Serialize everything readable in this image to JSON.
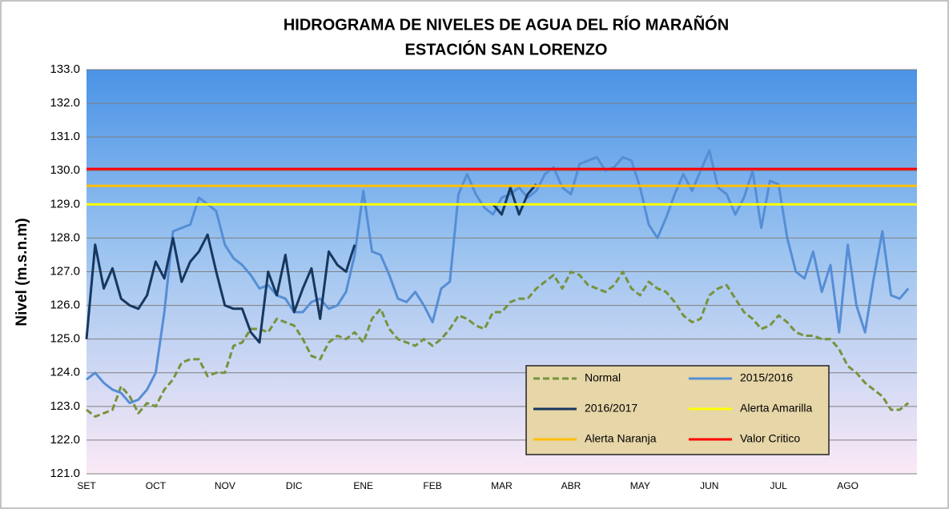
{
  "chart_data": {
    "type": "line",
    "title": [
      "HIDROGRAMA DE NIVELES DE AGUA DEL RÍO MARAÑÓN",
      "ESTACIÓN SAN LORENZO"
    ],
    "y_label": "Nivel (m.s.n.m)",
    "categories": [
      "SET",
      null,
      null,
      null,
      null,
      null,
      null,
      null,
      "OCT",
      null,
      null,
      null,
      null,
      null,
      null,
      null,
      "NOV",
      null,
      null,
      null,
      null,
      null,
      null,
      null,
      "DIC",
      null,
      null,
      null,
      null,
      null,
      null,
      null,
      "ENE",
      null,
      null,
      null,
      null,
      null,
      null,
      null,
      "FEB",
      null,
      null,
      null,
      null,
      null,
      null,
      null,
      "MAR",
      null,
      null,
      null,
      null,
      null,
      null,
      null,
      "ABR",
      null,
      null,
      null,
      null,
      null,
      null,
      null,
      "MAY",
      null,
      null,
      null,
      null,
      null,
      null,
      null,
      "JUN",
      null,
      null,
      null,
      null,
      null,
      null,
      null,
      "JUL",
      null,
      null,
      null,
      null,
      null,
      null,
      null,
      "AGO",
      null,
      null,
      null,
      null,
      null,
      null,
      null
    ],
    "series": [
      {
        "name": "Normal",
        "color": "#77933c",
        "dashed": true,
        "values": [
          122.9,
          122.7,
          122.8,
          122.9,
          123.6,
          123.3,
          122.8,
          123.1,
          123.0,
          123.5,
          123.8,
          124.3,
          124.4,
          124.4,
          123.9,
          124.0,
          124.0,
          124.8,
          124.9,
          125.3,
          125.3,
          125.2,
          125.6,
          125.5,
          125.4,
          125.0,
          124.5,
          124.4,
          124.9,
          125.1,
          125.0,
          125.2,
          124.9,
          125.6,
          125.9,
          125.3,
          125.0,
          124.9,
          124.8,
          125.0,
          124.8,
          125.0,
          125.3,
          125.7,
          125.6,
          125.4,
          125.3,
          125.8,
          125.8,
          126.1,
          126.2,
          126.2,
          126.5,
          126.7,
          126.9,
          126.5,
          127.0,
          126.9,
          126.6,
          126.5,
          126.4,
          126.6,
          127.0,
          126.5,
          126.3,
          126.7,
          126.5,
          126.4,
          126.1,
          125.7,
          125.5,
          125.6,
          126.3,
          126.5,
          126.6,
          126.2,
          125.8,
          125.6,
          125.3,
          125.4,
          125.7,
          125.5,
          125.2,
          125.1,
          125.1,
          125.0,
          125.0,
          124.7,
          124.2,
          124.0,
          123.7,
          123.5,
          123.3,
          122.9,
          122.9,
          123.1
        ]
      },
      {
        "name": "2015/2016",
        "color": "#558ed5",
        "values": [
          123.8,
          124.0,
          123.7,
          123.5,
          123.4,
          123.1,
          123.2,
          123.5,
          124.0,
          125.8,
          128.2,
          128.3,
          128.4,
          129.2,
          129.0,
          128.8,
          127.8,
          127.4,
          127.2,
          126.9,
          126.5,
          126.6,
          126.3,
          126.2,
          125.8,
          125.8,
          126.1,
          126.2,
          125.9,
          126.0,
          126.4,
          127.5,
          129.4,
          127.6,
          127.5,
          126.9,
          126.2,
          126.1,
          126.4,
          126.0,
          125.5,
          126.5,
          126.7,
          129.3,
          129.9,
          129.3,
          128.9,
          128.7,
          129.2,
          129.3,
          129.5,
          129.2,
          129.4,
          129.9,
          130.1,
          129.5,
          129.3,
          130.2,
          130.3,
          130.4,
          130.0,
          130.1,
          130.4,
          130.3,
          129.5,
          128.4,
          128.0,
          128.6,
          129.3,
          129.9,
          129.4,
          130.0,
          130.6,
          129.5,
          129.3,
          128.7,
          129.2,
          130.0,
          128.3,
          129.7,
          129.6,
          128.0,
          127.0,
          126.8,
          127.6,
          126.4,
          127.2,
          125.2,
          127.8,
          126.0,
          125.2,
          126.8,
          128.2,
          126.3,
          126.2,
          126.5
        ]
      },
      {
        "name": "2016/2017",
        "color": "#17375e",
        "values": [
          125.0,
          127.8,
          126.5,
          127.1,
          126.2,
          126.0,
          125.9,
          126.3,
          127.3,
          126.8,
          128.0,
          126.7,
          127.3,
          127.6,
          128.1,
          127.0,
          126.0,
          125.9,
          125.9,
          125.2,
          124.9,
          127.0,
          126.3,
          127.5,
          125.8,
          126.5,
          127.1,
          125.6,
          127.6,
          127.2,
          127.0,
          127.8,
          null,
          null,
          null,
          null,
          null,
          null,
          null,
          null,
          null,
          null,
          null,
          null,
          null,
          null,
          null,
          129.0,
          128.7,
          129.5,
          128.7,
          129.3,
          129.6,
          null,
          null,
          null,
          null,
          null,
          null,
          null,
          null,
          null,
          null,
          null,
          null,
          null,
          null,
          null,
          null,
          null,
          null,
          null,
          null,
          null,
          null,
          null,
          null,
          null,
          null,
          null,
          null,
          null,
          null,
          null,
          null,
          null,
          null,
          null,
          null,
          null,
          null,
          null,
          null,
          null,
          null,
          null
        ]
      }
    ],
    "reference_lines": [
      {
        "name": "Alerta Amarilla",
        "color": "#ffff00",
        "value": 129.0
      },
      {
        "name": "Alerta Naranja",
        "color": "#ffc000",
        "value": 129.55
      },
      {
        "name": "Valor Critico",
        "color": "#ff0000",
        "value": 130.05
      }
    ],
    "ylim": [
      121,
      133
    ],
    "yticks": [
      {
        "value": 121,
        "label": "121.0"
      },
      {
        "value": 122,
        "label": "122.0"
      },
      {
        "value": 123,
        "label": "123.0"
      },
      {
        "value": 124,
        "label": "124.0"
      },
      {
        "value": 125,
        "label": "125.0"
      },
      {
        "value": 126,
        "label": "126.0"
      },
      {
        "value": 127,
        "label": "127.0"
      },
      {
        "value": 128,
        "label": "128.0"
      },
      {
        "value": 129,
        "label": "129.0"
      },
      {
        "value": 130,
        "label": "130.0"
      },
      {
        "value": 131,
        "label": "131.0"
      },
      {
        "value": 132,
        "label": "132.0"
      },
      {
        "value": 133,
        "label": "133.0"
      }
    ],
    "grid": true
  }
}
